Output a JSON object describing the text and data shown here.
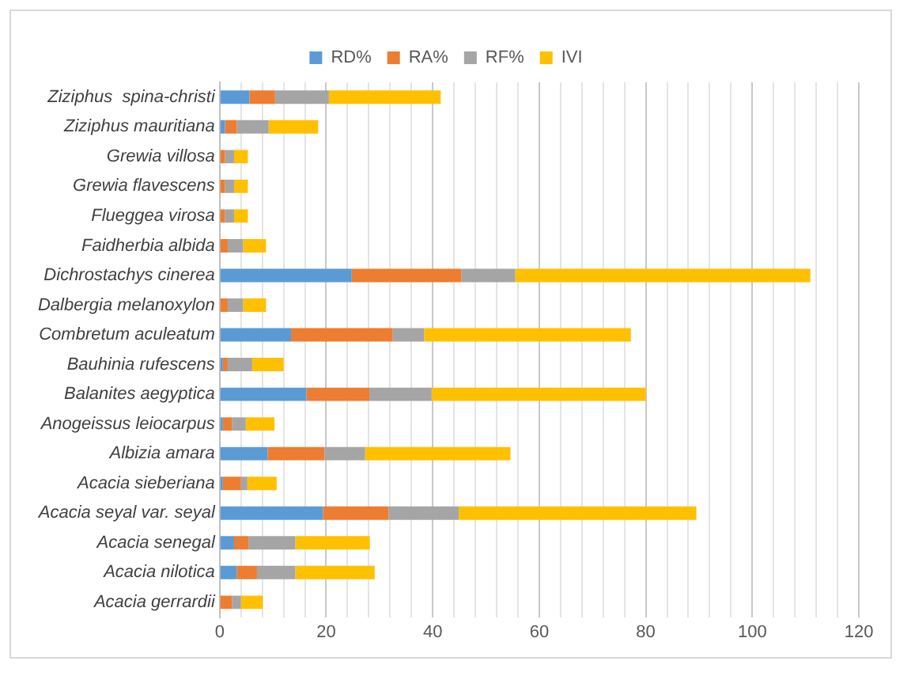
{
  "chart_data": {
    "type": "bar",
    "orientation": "horizontal",
    "stacked": true,
    "legend": "top",
    "grid": "x",
    "categories": [
      "Ziziphus  spina-christi",
      "Ziziphus mauritiana",
      "Grewia villosa",
      "Grewia flavescens",
      "Flueggea virosa",
      "Faidherbia albida",
      "Dichrostachys cinerea",
      "Dalbergia melanoxylon",
      "Combretum aculeatum",
      "Bauhinia rufescens",
      "Balanites aegyptica",
      "Anogeissus leiocarpus",
      "Albizia amara",
      "Acacia sieberiana",
      "Acacia seyal var. seyal",
      "Acacia senegal",
      "Acacia nilotica",
      "Acacia gerrardii"
    ],
    "series": [
      {
        "name": "RD%",
        "color": "#5b9bd5",
        "values": [
          5.6,
          1.0,
          0,
          0,
          0,
          0,
          24.8,
          0,
          13.4,
          0.6,
          16.3,
          0.6,
          9.0,
          0.6,
          19.4,
          2.7,
          3.2,
          0
        ]
      },
      {
        "name": "RA%",
        "color": "#ed7d31",
        "values": [
          4.8,
          2.2,
          1.0,
          1.0,
          1.0,
          1.5,
          20.6,
          1.5,
          19.1,
          0.9,
          11.8,
          1.7,
          10.7,
          3.4,
          12.3,
          2.7,
          3.8,
          2.3
        ]
      },
      {
        "name": "RF%",
        "color": "#a5a5a5",
        "values": [
          10.1,
          6.0,
          1.7,
          1.7,
          1.7,
          2.9,
          10.1,
          2.9,
          5.9,
          4.6,
          11.7,
          2.6,
          7.6,
          1.2,
          13.2,
          8.8,
          7.2,
          1.7
        ]
      },
      {
        "name": "IVI",
        "color": "#ffc000",
        "values": [
          21.0,
          9.3,
          2.6,
          2.6,
          2.6,
          4.3,
          55.4,
          4.3,
          38.8,
          5.9,
          40.2,
          5.4,
          27.3,
          5.5,
          44.6,
          14.0,
          14.9,
          4.1
        ]
      }
    ],
    "xlim": [
      0,
      120
    ],
    "xticks": [
      0,
      {
        "value": 4,
        "label": null
      },
      {
        "value": 8,
        "label": null
      },
      {
        "value": 12,
        "label": null
      },
      {
        "value": 16,
        "label": null
      },
      20,
      {
        "value": 24,
        "label": null
      },
      {
        "value": 28,
        "label": null
      },
      {
        "value": 32,
        "label": null
      },
      {
        "value": 36,
        "label": null
      },
      40,
      {
        "value": 44,
        "label": null
      },
      {
        "value": 48,
        "label": null
      },
      {
        "value": 52,
        "label": null
      },
      {
        "value": 56,
        "label": null
      },
      60,
      {
        "value": 64,
        "label": null
      },
      {
        "value": 68,
        "label": null
      },
      {
        "value": 72,
        "label": null
      },
      {
        "value": 76,
        "label": null
      },
      80,
      {
        "value": 84,
        "label": null
      },
      {
        "value": 88,
        "label": null
      },
      {
        "value": 92,
        "label": null
      },
      {
        "value": 96,
        "label": null
      },
      100,
      {
        "value": 104,
        "label": null
      },
      {
        "value": 108,
        "label": null
      },
      {
        "value": 112,
        "label": null
      },
      {
        "value": 116,
        "label": null
      },
      120
    ]
  }
}
